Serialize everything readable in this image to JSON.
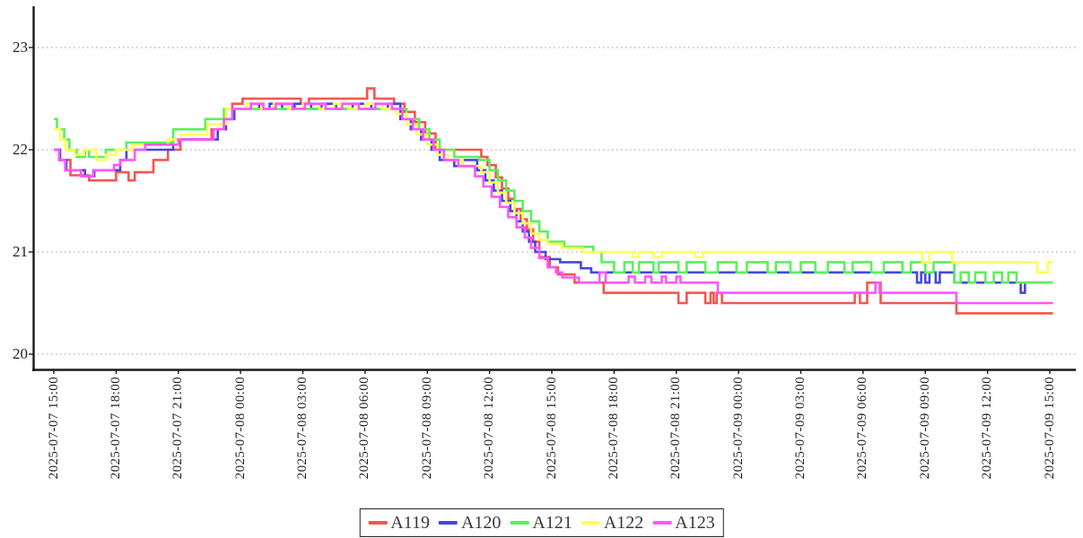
{
  "chart_data": {
    "type": "line",
    "subtype": "step",
    "title": "",
    "xlabel": "",
    "ylabel": "",
    "grid": "horizontal-dashed",
    "background": "#ffffff",
    "axis_color": "#1a1a1a",
    "grid_color": "#999999",
    "legend": {
      "position": "bottom-center"
    },
    "x_axis": {
      "unit": "datetime",
      "tick_hours": [
        0,
        3,
        6,
        9,
        12,
        15,
        18,
        21,
        24,
        27,
        30,
        33,
        36,
        39,
        42,
        45,
        48
      ],
      "tick_labels": [
        "2025-07-07 15:00",
        "2025-07-07 18:00",
        "2025-07-07 21:00",
        "2025-07-08 00:00",
        "2025-07-08 03:00",
        "2025-07-08 06:00",
        "2025-07-08 09:00",
        "2025-07-08 12:00",
        "2025-07-08 15:00",
        "2025-07-08 18:00",
        "2025-07-08 21:00",
        "2025-07-09 00:00",
        "2025-07-09 03:00",
        "2025-07-09 06:00",
        "2025-07-09 09:00",
        "2025-07-09 12:00",
        "2025-07-09 15:00"
      ],
      "range_hours": [
        0,
        48.15
      ],
      "label_rotation": -90
    },
    "y_axis": {
      "ticks": [
        20,
        21,
        22,
        23
      ],
      "range": [
        19.65,
        23.4
      ]
    },
    "series": [
      {
        "name": "A119",
        "color": "#f5554e",
        "points": [
          [
            0,
            22.0
          ],
          [
            0.3,
            21.9
          ],
          [
            0.8,
            21.75
          ],
          [
            1.7,
            21.7
          ],
          [
            3.0,
            21.78
          ],
          [
            3.6,
            21.7
          ],
          [
            3.9,
            21.78
          ],
          [
            4.8,
            21.9
          ],
          [
            5.5,
            22.0
          ],
          [
            6.1,
            22.1
          ],
          [
            7.6,
            22.2
          ],
          [
            8.2,
            22.3
          ],
          [
            8.6,
            22.45
          ],
          [
            9.1,
            22.5
          ],
          [
            11.9,
            22.45
          ],
          [
            12.3,
            22.5
          ],
          [
            15.1,
            22.6
          ],
          [
            15.45,
            22.5
          ],
          [
            16.4,
            22.45
          ],
          [
            16.9,
            22.37
          ],
          [
            17.4,
            22.27
          ],
          [
            17.9,
            22.16
          ],
          [
            18.4,
            22.0
          ],
          [
            20.6,
            21.93
          ],
          [
            20.9,
            21.85
          ],
          [
            21.3,
            21.73
          ],
          [
            21.6,
            21.62
          ],
          [
            21.9,
            21.52
          ],
          [
            22.2,
            21.42
          ],
          [
            22.5,
            21.32
          ],
          [
            22.8,
            21.22
          ],
          [
            23.1,
            21.1
          ],
          [
            23.4,
            20.95
          ],
          [
            23.9,
            20.85
          ],
          [
            24.3,
            20.78
          ],
          [
            25.1,
            20.7
          ],
          [
            26.5,
            20.6
          ],
          [
            30.1,
            20.5
          ],
          [
            30.5,
            20.6
          ],
          [
            31.4,
            20.5
          ],
          [
            31.65,
            20.6
          ],
          [
            31.8,
            20.5
          ],
          [
            31.95,
            20.6
          ],
          [
            32.2,
            20.5
          ],
          [
            38.6,
            20.6
          ],
          [
            38.85,
            20.5
          ],
          [
            39.2,
            20.7
          ],
          [
            39.85,
            20.5
          ],
          [
            43.5,
            20.4
          ],
          [
            48.15,
            20.4
          ]
        ]
      },
      {
        "name": "A120",
        "color": "#4747dc",
        "points": [
          [
            0,
            22.0
          ],
          [
            0.3,
            21.9
          ],
          [
            0.6,
            21.8
          ],
          [
            1.5,
            21.74
          ],
          [
            1.95,
            21.8
          ],
          [
            3.2,
            21.9
          ],
          [
            3.5,
            22.0
          ],
          [
            5.75,
            22.1
          ],
          [
            7.9,
            22.2
          ],
          [
            8.3,
            22.3
          ],
          [
            8.7,
            22.4
          ],
          [
            9.3,
            22.45
          ],
          [
            9.9,
            22.4
          ],
          [
            10.4,
            22.45
          ],
          [
            11.0,
            22.4
          ],
          [
            11.6,
            22.45
          ],
          [
            12.4,
            22.4
          ],
          [
            12.9,
            22.45
          ],
          [
            13.6,
            22.4
          ],
          [
            14.4,
            22.45
          ],
          [
            15.3,
            22.4
          ],
          [
            16.1,
            22.45
          ],
          [
            16.7,
            22.3
          ],
          [
            17.2,
            22.2
          ],
          [
            17.7,
            22.1
          ],
          [
            18.2,
            22.0
          ],
          [
            18.6,
            21.9
          ],
          [
            19.3,
            21.84
          ],
          [
            19.7,
            21.9
          ],
          [
            20.4,
            21.8
          ],
          [
            20.8,
            21.7
          ],
          [
            21.2,
            21.6
          ],
          [
            21.6,
            21.5
          ],
          [
            22.0,
            21.4
          ],
          [
            22.3,
            21.3
          ],
          [
            22.6,
            21.2
          ],
          [
            22.9,
            21.1
          ],
          [
            23.2,
            21.0
          ],
          [
            23.7,
            20.93
          ],
          [
            24.4,
            20.9
          ],
          [
            25.4,
            20.84
          ],
          [
            25.9,
            20.8
          ],
          [
            41.6,
            20.7
          ],
          [
            41.8,
            20.8
          ],
          [
            42.0,
            20.7
          ],
          [
            42.2,
            20.8
          ],
          [
            42.5,
            20.7
          ],
          [
            42.7,
            20.8
          ],
          [
            43.4,
            20.7
          ],
          [
            46.6,
            20.6
          ],
          [
            46.8,
            20.7
          ],
          [
            48.15,
            20.7
          ]
        ]
      },
      {
        "name": "A121",
        "color": "#5cef5c",
        "points": [
          [
            0,
            22.3
          ],
          [
            0.15,
            22.2
          ],
          [
            0.5,
            22.1
          ],
          [
            0.75,
            22.0
          ],
          [
            1.1,
            21.93
          ],
          [
            1.5,
            22.0
          ],
          [
            1.7,
            21.93
          ],
          [
            2.5,
            22.0
          ],
          [
            3.5,
            22.07
          ],
          [
            5.75,
            22.2
          ],
          [
            7.3,
            22.3
          ],
          [
            8.2,
            22.4
          ],
          [
            16.6,
            22.4
          ],
          [
            17.0,
            22.3
          ],
          [
            17.6,
            22.2
          ],
          [
            18.1,
            22.1
          ],
          [
            18.6,
            22.0
          ],
          [
            19.3,
            21.93
          ],
          [
            20.5,
            21.9
          ],
          [
            21.0,
            21.8
          ],
          [
            21.4,
            21.7
          ],
          [
            21.8,
            21.6
          ],
          [
            22.2,
            21.5
          ],
          [
            22.6,
            21.4
          ],
          [
            23.0,
            21.3
          ],
          [
            23.4,
            21.2
          ],
          [
            23.8,
            21.1
          ],
          [
            24.6,
            21.05
          ],
          [
            26.0,
            21.0
          ],
          [
            26.4,
            20.9
          ],
          [
            27.0,
            20.8
          ],
          [
            27.5,
            20.9
          ],
          [
            27.9,
            20.8
          ],
          [
            28.2,
            20.9
          ],
          [
            28.9,
            20.8
          ],
          [
            29.15,
            20.9
          ],
          [
            30.1,
            20.8
          ],
          [
            30.5,
            20.9
          ],
          [
            31.4,
            20.8
          ],
          [
            32.0,
            20.9
          ],
          [
            32.9,
            20.8
          ],
          [
            33.4,
            20.9
          ],
          [
            34.4,
            20.8
          ],
          [
            34.8,
            20.9
          ],
          [
            35.5,
            20.8
          ],
          [
            36.0,
            20.9
          ],
          [
            36.7,
            20.8
          ],
          [
            37.3,
            20.9
          ],
          [
            38.1,
            20.8
          ],
          [
            38.5,
            20.9
          ],
          [
            39.4,
            20.8
          ],
          [
            40.0,
            20.9
          ],
          [
            40.9,
            20.8
          ],
          [
            41.3,
            20.9
          ],
          [
            42.0,
            20.8
          ],
          [
            42.4,
            20.9
          ],
          [
            43.4,
            20.7
          ],
          [
            43.7,
            20.8
          ],
          [
            44.1,
            20.7
          ],
          [
            44.4,
            20.8
          ],
          [
            44.9,
            20.7
          ],
          [
            45.3,
            20.8
          ],
          [
            45.7,
            20.7
          ],
          [
            46.0,
            20.8
          ],
          [
            46.4,
            20.7
          ],
          [
            48.15,
            20.7
          ]
        ]
      },
      {
        "name": "A122",
        "color": "#ffff55",
        "points": [
          [
            0,
            22.2
          ],
          [
            0.3,
            22.1
          ],
          [
            0.55,
            22.0
          ],
          [
            1.0,
            21.95
          ],
          [
            1.45,
            22.0
          ],
          [
            2.05,
            21.9
          ],
          [
            2.5,
            21.95
          ],
          [
            3.0,
            22.0
          ],
          [
            3.8,
            22.05
          ],
          [
            5.5,
            22.1
          ],
          [
            6.1,
            22.15
          ],
          [
            7.4,
            22.25
          ],
          [
            8.3,
            22.4
          ],
          [
            9.3,
            22.45
          ],
          [
            10.0,
            22.4
          ],
          [
            10.6,
            22.45
          ],
          [
            11.3,
            22.4
          ],
          [
            12.0,
            22.45
          ],
          [
            12.8,
            22.4
          ],
          [
            13.5,
            22.45
          ],
          [
            14.2,
            22.4
          ],
          [
            15.0,
            22.45
          ],
          [
            15.8,
            22.4
          ],
          [
            16.5,
            22.35
          ],
          [
            17.0,
            22.25
          ],
          [
            17.5,
            22.15
          ],
          [
            18.0,
            22.05
          ],
          [
            18.5,
            21.95
          ],
          [
            19.0,
            21.9
          ],
          [
            19.7,
            21.84
          ],
          [
            20.6,
            21.78
          ],
          [
            21.0,
            21.68
          ],
          [
            21.4,
            21.58
          ],
          [
            21.8,
            21.48
          ],
          [
            22.2,
            21.38
          ],
          [
            22.6,
            21.28
          ],
          [
            23.0,
            21.18
          ],
          [
            23.4,
            21.12
          ],
          [
            23.8,
            21.08
          ],
          [
            24.5,
            21.04
          ],
          [
            25.5,
            21.0
          ],
          [
            27.9,
            20.95
          ],
          [
            28.2,
            21.0
          ],
          [
            28.9,
            20.95
          ],
          [
            29.3,
            21.0
          ],
          [
            30.9,
            20.95
          ],
          [
            31.3,
            21.0
          ],
          [
            41.85,
            20.9
          ],
          [
            42.2,
            21.0
          ],
          [
            43.3,
            20.9
          ],
          [
            47.4,
            20.8
          ],
          [
            47.9,
            20.9
          ],
          [
            48.15,
            20.9
          ]
        ]
      },
      {
        "name": "A123",
        "color": "#ff55ff",
        "points": [
          [
            0,
            22.0
          ],
          [
            0.25,
            21.9
          ],
          [
            0.55,
            21.8
          ],
          [
            1.3,
            21.74
          ],
          [
            1.9,
            21.8
          ],
          [
            2.9,
            21.85
          ],
          [
            3.2,
            21.9
          ],
          [
            3.9,
            22.0
          ],
          [
            4.4,
            22.05
          ],
          [
            6.0,
            22.1
          ],
          [
            7.7,
            22.2
          ],
          [
            8.2,
            22.3
          ],
          [
            8.6,
            22.4
          ],
          [
            9.5,
            22.45
          ],
          [
            10.1,
            22.4
          ],
          [
            10.7,
            22.45
          ],
          [
            11.5,
            22.4
          ],
          [
            12.1,
            22.45
          ],
          [
            13.1,
            22.4
          ],
          [
            13.9,
            22.45
          ],
          [
            14.7,
            22.4
          ],
          [
            15.5,
            22.45
          ],
          [
            16.3,
            22.4
          ],
          [
            16.8,
            22.3
          ],
          [
            17.3,
            22.2
          ],
          [
            17.8,
            22.1
          ],
          [
            18.3,
            22.0
          ],
          [
            18.8,
            21.9
          ],
          [
            19.5,
            21.84
          ],
          [
            20.3,
            21.74
          ],
          [
            20.7,
            21.64
          ],
          [
            21.1,
            21.54
          ],
          [
            21.5,
            21.44
          ],
          [
            21.9,
            21.34
          ],
          [
            22.3,
            21.24
          ],
          [
            22.7,
            21.14
          ],
          [
            23.0,
            21.04
          ],
          [
            23.4,
            20.94
          ],
          [
            23.8,
            20.85
          ],
          [
            24.2,
            20.8
          ],
          [
            24.5,
            20.75
          ],
          [
            25.3,
            20.7
          ],
          [
            26.3,
            20.8
          ],
          [
            26.6,
            20.7
          ],
          [
            27.7,
            20.76
          ],
          [
            28.0,
            20.7
          ],
          [
            28.5,
            20.76
          ],
          [
            28.8,
            20.7
          ],
          [
            29.3,
            20.76
          ],
          [
            29.5,
            20.7
          ],
          [
            30.0,
            20.76
          ],
          [
            30.2,
            20.7
          ],
          [
            32.0,
            20.6
          ],
          [
            39.6,
            20.7
          ],
          [
            39.8,
            20.6
          ],
          [
            43.5,
            20.5
          ],
          [
            48.15,
            20.5
          ]
        ]
      }
    ]
  }
}
